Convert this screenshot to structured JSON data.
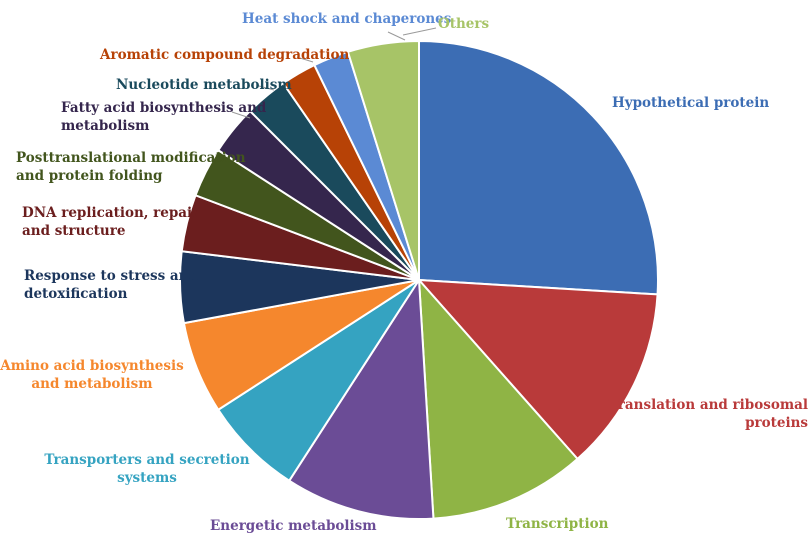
{
  "chart_data": {
    "type": "pie",
    "title": "",
    "slices": [
      {
        "label": "Hypothetical protein",
        "value": 27.0,
        "color": "#3c6db4"
      },
      {
        "label": "Translation and ribosomal proteins",
        "value": 13.0,
        "color": "#b93a3a"
      },
      {
        "label": "Transcription",
        "value": 11.0,
        "color": "#8fb445"
      },
      {
        "label": "Energetic metabolism",
        "value": 10.5,
        "color": "#6b4c96"
      },
      {
        "label": "Transporters and secretion systems",
        "value": 7.0,
        "color": "#35a3c1"
      },
      {
        "label": "Amino acid biosynthesis and metabolism",
        "value": 6.5,
        "color": "#f5872d"
      },
      {
        "label": "Response to stress and detoxification",
        "value": 5.0,
        "color": "#1c365c"
      },
      {
        "label": "DNA replication, repair and structure",
        "value": 4.0,
        "color": "#6b1e1e"
      },
      {
        "label": "Posttranslational modification and protein folding",
        "value": 3.5,
        "color": "#42551d"
      },
      {
        "label": "Fatty acid biosynthesis and metabolism",
        "value": 3.5,
        "color": "#35264d"
      },
      {
        "label": "Nucleotide metabolism",
        "value": 3.0,
        "color": "#1a4a5c"
      },
      {
        "label": "Aromatic compound degradation",
        "value": 2.5,
        "color": "#b74206"
      },
      {
        "label": "Heat shock and chaperones",
        "value": 2.5,
        "color": "#5b8ad4"
      },
      {
        "label": "Others",
        "value": 5.0,
        "color": "#a7c467"
      }
    ],
    "labels": [
      {
        "lines": [
          "Hypothetical protein"
        ],
        "color": "#3c6db4"
      },
      {
        "lines": [
          "Translation and ribosomal",
          "proteins"
        ],
        "color": "#b93a3a"
      },
      {
        "lines": [
          "Transcription"
        ],
        "color": "#8fb445"
      },
      {
        "lines": [
          "Energetic metabolism"
        ],
        "color": "#6b4c96"
      },
      {
        "lines": [
          "Transporters and secretion",
          "systems"
        ],
        "color": "#35a3c1"
      },
      {
        "lines": [
          "Amino acid biosynthesis",
          "and metabolism"
        ],
        "color": "#f5872d"
      },
      {
        "lines": [
          "Response to stress and",
          "detoxification"
        ],
        "color": "#1c365c"
      },
      {
        "lines": [
          "DNA replication, repair",
          "and structure"
        ],
        "color": "#6b1e1e"
      },
      {
        "lines": [
          "Posttranslational modification",
          "and protein folding"
        ],
        "color": "#42551d"
      },
      {
        "lines": [
          "Fatty acid biosynthesis and",
          "metabolism"
        ],
        "color": "#35264d"
      },
      {
        "lines": [
          "Nucleotide metabolism"
        ],
        "color": "#1a4a5c"
      },
      {
        "lines": [
          "Aromatic compound degradation"
        ],
        "color": "#b74206"
      },
      {
        "lines": [
          "Heat shock and chaperones"
        ],
        "color": "#5b8ad4"
      },
      {
        "lines": [
          "Others"
        ],
        "color": "#a7c467"
      }
    ],
    "legend": "none (labels placed next to slices)"
  }
}
